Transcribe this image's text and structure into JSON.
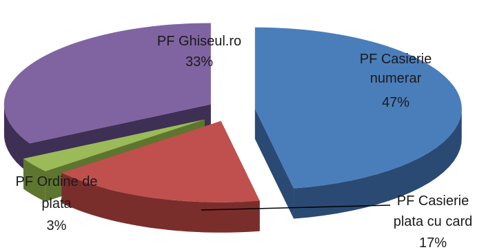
{
  "chart_data": {
    "type": "pie",
    "style": "3d-exploded",
    "slices": [
      {
        "label_lines": [
          "PF Casierie",
          "numerar"
        ],
        "label": "PF Casierie numerar",
        "value": 47,
        "value_label": "47%",
        "color": "#4a7ebb",
        "side_color": "#2a4a73"
      },
      {
        "label_lines": [
          "PF Casierie",
          "plata cu card"
        ],
        "label": "PF Casierie plata cu card",
        "value": 17,
        "value_label": "17%",
        "color": "#c0504d",
        "side_color": "#7a2e2c"
      },
      {
        "label_lines": [
          "PF Ordine de",
          "plata"
        ],
        "label": "PF Ordine de plata",
        "value": 3,
        "value_label": "3%",
        "color": "#9bbb59",
        "side_color": "#5e7530"
      },
      {
        "label_lines": [
          "PF Ghiseul.ro"
        ],
        "label": "PF Ghiseul.ro",
        "value": 33,
        "value_label": "33%",
        "color": "#8064a2",
        "side_color": "#3e2f55"
      }
    ],
    "legend": "none"
  }
}
